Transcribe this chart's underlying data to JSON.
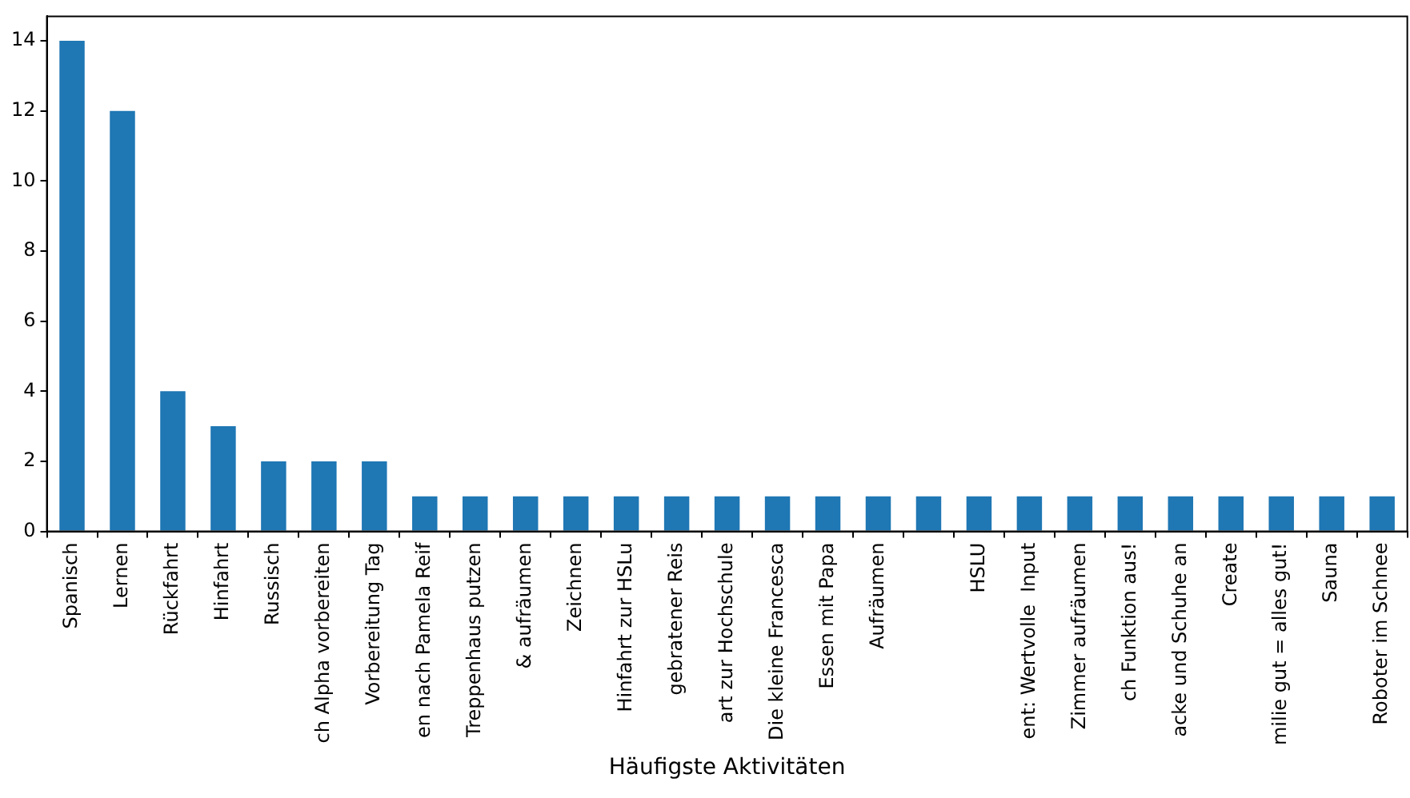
{
  "chart_data": {
    "type": "bar",
    "categories": [
      "Spanisch",
      "Lernen",
      "Rückfahrt",
      "Hinfahrt",
      "Russisch",
      "ch Alpha vorbereiten",
      "Vorbereitung Tag",
      "en nach Pamela Reif",
      "Treppenhaus putzen",
      "& aufräumen",
      "Zeichnen",
      "Hinfahrt zur HSLu",
      "gebratener Reis",
      "art zur Hochschule",
      "Die kleine Francesca",
      "Essen mit Papa",
      "Aufräumen",
      null,
      "HSLU",
      "ent: Wertvolle  Input",
      "Zimmer aufräumen",
      "ch Funktion aus!",
      "acke und Schuhe an",
      "Create",
      "milie gut = alles gut!",
      "Sauna",
      "Roboter im Schnee"
    ],
    "values": [
      14,
      12,
      4,
      3,
      2,
      2,
      2,
      1,
      1,
      1,
      1,
      1,
      1,
      1,
      1,
      1,
      1,
      1,
      1,
      1,
      1,
      1,
      1,
      1,
      1,
      1,
      1
    ],
    "color": "#1f77b4",
    "ylim": [
      0,
      14.7
    ],
    "yticks": [
      0,
      2,
      4,
      6,
      8,
      10,
      12,
      14
    ],
    "grid": false,
    "annotations": [
      "Häufigste Aktivitäten"
    ]
  }
}
